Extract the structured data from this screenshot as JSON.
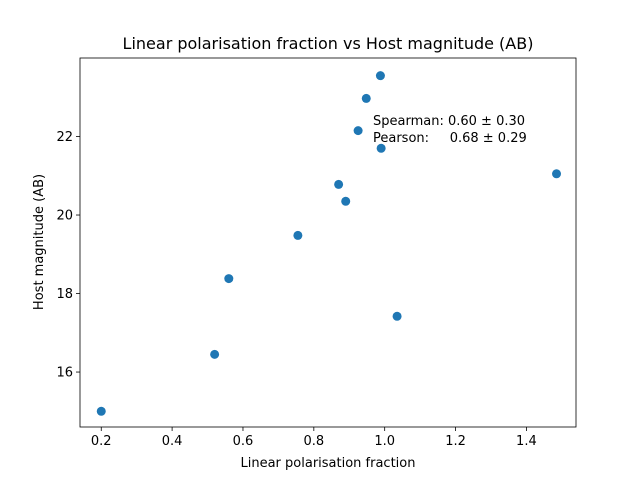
{
  "chart_data": {
    "type": "scatter",
    "title": "Linear polarisation fraction vs Host magnitude (AB)",
    "xlabel": "Linear polarisation fraction",
    "ylabel": "Host magnitude (AB)",
    "xlim": [
      0.14,
      1.54
    ],
    "ylim": [
      14.6,
      24.0
    ],
    "xticks": [
      0.2,
      0.4,
      0.6,
      0.8,
      1.0,
      1.2,
      1.4
    ],
    "xtick_labels": [
      "0.2",
      "0.4",
      "0.6",
      "0.8",
      "1.0",
      "1.2",
      "1.4"
    ],
    "yticks": [
      16,
      18,
      20,
      22
    ],
    "ytick_labels": [
      "16",
      "18",
      "20",
      "22"
    ],
    "grid": false,
    "marker_color": "#1f77b4",
    "series": [
      {
        "x": [
          0.2,
          0.52,
          0.56,
          0.755,
          0.87,
          0.89,
          0.925,
          0.948,
          0.988,
          0.99,
          1.035,
          1.485
        ],
        "y": [
          15.0,
          16.45,
          18.38,
          19.48,
          20.78,
          20.35,
          22.15,
          22.97,
          23.55,
          21.7,
          17.42,
          21.05
        ]
      }
    ],
    "annotations": [
      "Spearman: 0.60 ± 0.30",
      "Pearson:     0.68 ± 0.29"
    ]
  }
}
